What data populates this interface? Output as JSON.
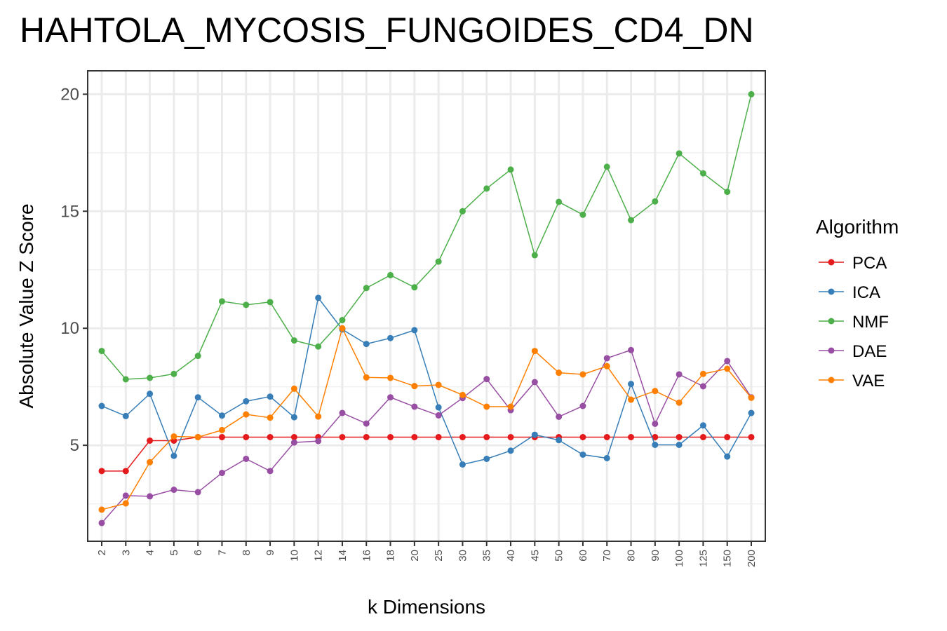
{
  "chart_data": {
    "type": "line",
    "title": "HAHTOLA_MYCOSIS_FUNGOIDES_CD4_DN",
    "xlabel": "k Dimensions",
    "ylabel": "Absolute Value Z Score",
    "categories": [
      "2",
      "3",
      "4",
      "5",
      "6",
      "7",
      "8",
      "9",
      "10",
      "12",
      "14",
      "16",
      "18",
      "20",
      "25",
      "30",
      "35",
      "40",
      "45",
      "50",
      "60",
      "70",
      "80",
      "90",
      "100",
      "125",
      "150",
      "200"
    ],
    "ylim": [
      0.9,
      21.0
    ],
    "yticks": [
      5,
      10,
      15,
      20
    ],
    "grid": true,
    "legend": {
      "title": "Algorithm",
      "position": "right"
    },
    "series": [
      {
        "name": "PCA",
        "color": "#e41a1c",
        "values": [
          3.9,
          3.9,
          5.2,
          5.2,
          5.35,
          5.35,
          5.35,
          5.35,
          5.35,
          5.35,
          5.35,
          5.35,
          5.35,
          5.35,
          5.35,
          5.35,
          5.35,
          5.35,
          5.35,
          5.35,
          5.35,
          5.35,
          5.35,
          5.35,
          5.35,
          5.35,
          5.35,
          5.35
        ]
      },
      {
        "name": "ICA",
        "color": "#377eb8",
        "values": [
          6.68,
          6.25,
          7.2,
          4.55,
          7.05,
          6.27,
          6.88,
          7.08,
          6.2,
          11.3,
          9.95,
          9.33,
          9.58,
          9.92,
          6.62,
          4.18,
          4.42,
          4.77,
          5.45,
          5.22,
          4.6,
          4.45,
          7.62,
          5.02,
          5.02,
          5.85,
          4.52,
          6.38
        ]
      },
      {
        "name": "NMF",
        "color": "#4daf4a",
        "values": [
          9.03,
          7.82,
          7.88,
          8.05,
          8.82,
          11.15,
          11.0,
          11.12,
          9.48,
          9.22,
          10.35,
          11.72,
          12.27,
          11.75,
          12.85,
          15.0,
          15.97,
          16.78,
          13.12,
          15.4,
          14.85,
          16.9,
          14.62,
          15.42,
          17.47,
          16.62,
          15.83,
          20.0
        ]
      },
      {
        "name": "DAE",
        "color": "#984ea3",
        "values": [
          1.68,
          2.85,
          2.82,
          3.1,
          3.0,
          3.82,
          4.42,
          3.9,
          5.12,
          5.18,
          6.38,
          5.93,
          7.05,
          6.65,
          6.28,
          7.02,
          7.83,
          6.5,
          7.7,
          6.22,
          6.68,
          8.72,
          9.07,
          5.92,
          8.03,
          7.52,
          8.6,
          7.05
        ]
      },
      {
        "name": "VAE",
        "color": "#ff7f00",
        "values": [
          2.25,
          2.52,
          4.28,
          5.38,
          5.35,
          5.65,
          6.32,
          6.18,
          7.42,
          6.23,
          10.0,
          7.9,
          7.88,
          7.53,
          7.58,
          7.15,
          6.65,
          6.65,
          9.03,
          8.1,
          8.03,
          8.38,
          6.95,
          7.32,
          6.82,
          8.05,
          8.27,
          7.03
        ]
      }
    ]
  }
}
